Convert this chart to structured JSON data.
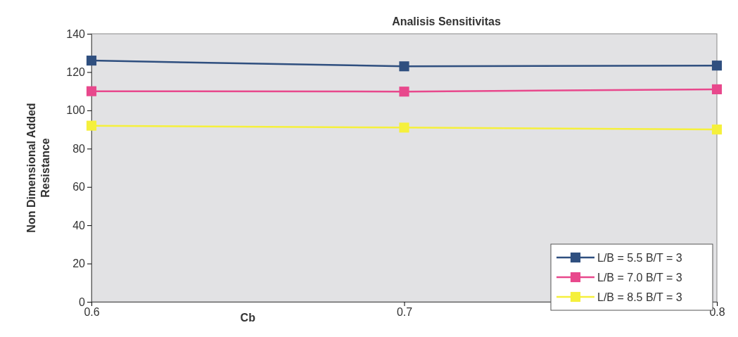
{
  "chart_data": {
    "type": "line",
    "title": "Analisis Sensitivitas",
    "xlabel": "Cb",
    "ylabel": "Non Dimensional Added Resistance",
    "x": [
      0.6,
      0.7,
      0.8
    ],
    "xlim": [
      0.6,
      0.8
    ],
    "xticks": [
      0.6,
      0.7,
      0.8
    ],
    "ylim": [
      0,
      140
    ],
    "yticks": [
      0,
      20,
      40,
      60,
      80,
      100,
      120,
      140
    ],
    "grid": false,
    "legend": "bottom right",
    "marker": "square",
    "line_style": "solid",
    "series": [
      {
        "name": "L/B = 5.5 B/T = 3",
        "color": "#2f4f7f",
        "values": [
          126,
          123,
          123.4
        ]
      },
      {
        "name": "L/B = 7.0 B/T = 3",
        "color": "#e8488c",
        "values": [
          110,
          109.8,
          111
        ]
      },
      {
        "name": "L/B = 8.5 B/T = 3",
        "color": "#f5f03c",
        "values": [
          92,
          91,
          90
        ]
      }
    ]
  }
}
